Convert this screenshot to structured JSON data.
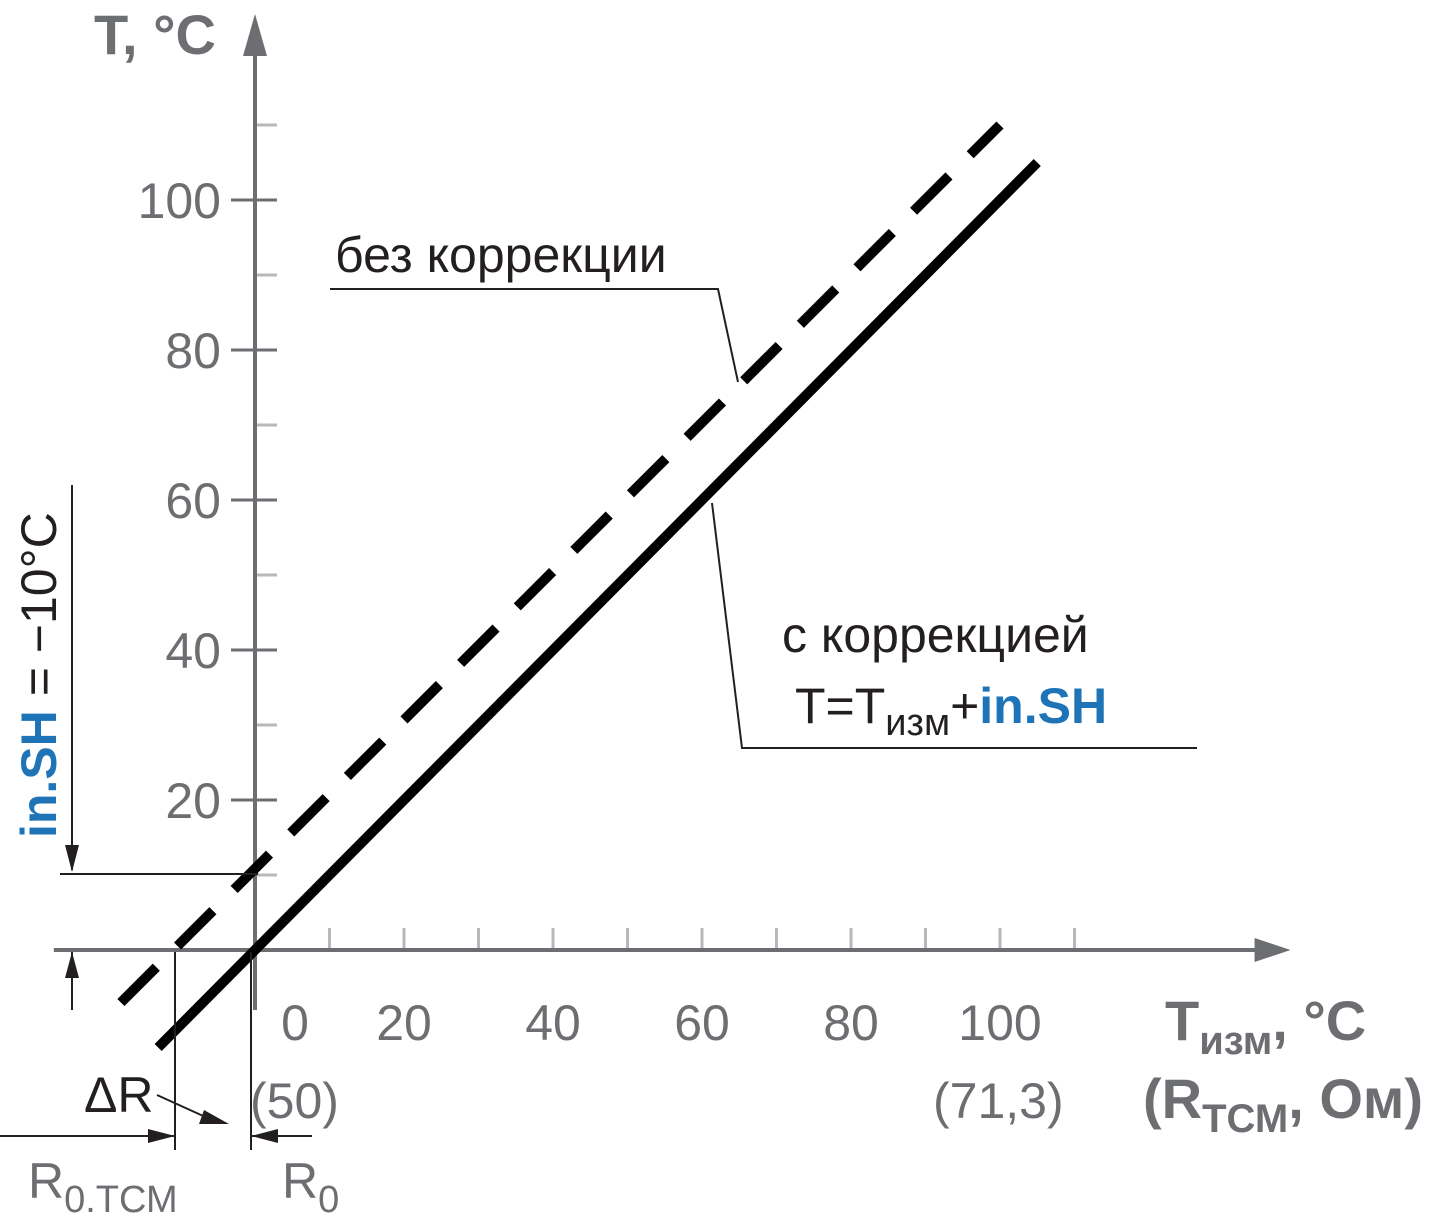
{
  "colors": {
    "axis": "#6d6e71",
    "line": "#000000",
    "accent": "#1f74b7",
    "text": "#231f20"
  },
  "chart_data": {
    "type": "line",
    "x_axis_title": "T",
    "x_axis_title_sub": "изм",
    "x_axis_title_unit": ", °С",
    "x_axis_title2_open": "(R",
    "x_axis_title2_sub": "ТСМ",
    "x_axis_title2_close": ", Ом)",
    "y_axis_title": "T, °С",
    "x_tick_labels": [
      "0",
      "20",
      "40",
      "60",
      "80",
      "100"
    ],
    "x_ticks": [
      0,
      20,
      40,
      60,
      80,
      100
    ],
    "x_minor_ticks": [
      10,
      30,
      50,
      70,
      90,
      110
    ],
    "y_tick_labels": [
      "20",
      "40",
      "60",
      "80",
      "100"
    ],
    "y_ticks": [
      20,
      40,
      60,
      80,
      100
    ],
    "y_minor_ticks": [
      10,
      30,
      50,
      70,
      90,
      110
    ],
    "resistance_labels": {
      "at_0": "(50)",
      "at_100": "(71,3)"
    },
    "xlim": [
      -27,
      139
    ],
    "ylim": [
      -13,
      124
    ],
    "series": [
      {
        "style": "dashed",
        "x": [
          -18,
          100
        ],
        "y": [
          -7,
          110
        ]
      },
      {
        "style": "solid",
        "x": [
          -13,
          105
        ],
        "y": [
          -13,
          105
        ]
      }
    ],
    "annotations": {
      "no_correction": "без коррекции",
      "with_correction": "с коррекцией",
      "formula_t": "T=T",
      "formula_sub": "изм",
      "formula_plus": "+",
      "formula_param": "in.SH",
      "shift_param": "in.SH",
      "shift_value": " = −10°С",
      "delta_r": "ΔR",
      "r0_tcm_main": "R",
      "r0_tcm_sub": "0.ТСМ",
      "r0_main": "R",
      "r0_sub": "0"
    },
    "shift_value_c": -10
  }
}
